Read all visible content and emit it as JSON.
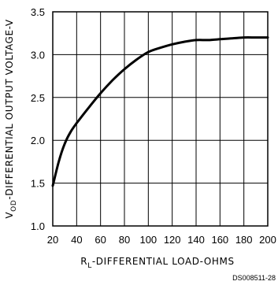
{
  "chart_data": {
    "type": "line",
    "title": "",
    "xlabel": "R",
    "xlabel_sub": "L",
    "xlabel_rest": "-DIFFERENTIAL LOAD-OHMS",
    "ylabel": "V",
    "ylabel_sub": "OD",
    "ylabel_rest": "-DIFFERENTIAL OUTPUT VOLTAGE-V",
    "xlim": [
      20,
      200
    ],
    "ylim": [
      1.0,
      3.5
    ],
    "xticks": [
      20,
      40,
      60,
      80,
      100,
      120,
      140,
      160,
      180,
      200
    ],
    "yticks": [
      1.0,
      1.5,
      2.0,
      2.5,
      3.0,
      3.5
    ],
    "ytick_labels": [
      "1.0",
      "1.5",
      "2.0",
      "2.5",
      "3.0",
      "3.5"
    ],
    "grid": true,
    "series": [
      {
        "x": [
          20,
          25,
          30,
          35,
          40,
          50,
          60,
          70,
          80,
          90,
          100,
          110,
          120,
          130,
          140,
          150,
          160,
          170,
          180,
          190,
          200
        ],
        "y": [
          1.47,
          1.75,
          1.96,
          2.1,
          2.2,
          2.38,
          2.55,
          2.7,
          2.83,
          2.94,
          3.03,
          3.08,
          3.12,
          3.15,
          3.17,
          3.17,
          3.18,
          3.19,
          3.2,
          3.2,
          3.2
        ]
      }
    ],
    "annotation": "DS008511-28"
  }
}
